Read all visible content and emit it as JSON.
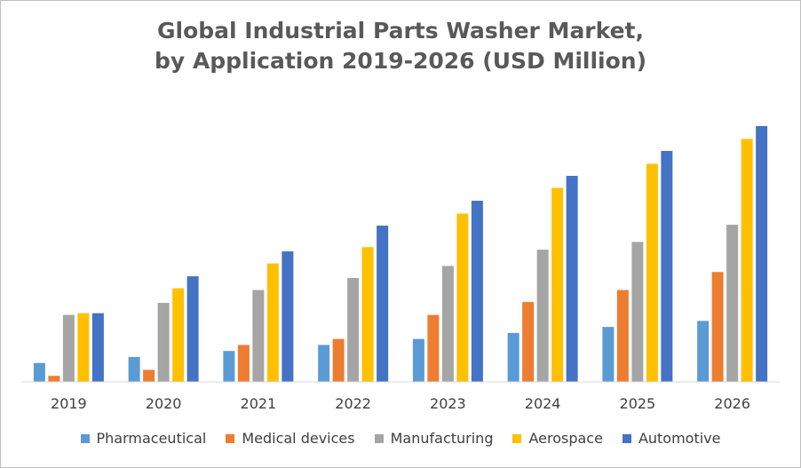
{
  "chart_data": {
    "type": "bar",
    "title": [
      "Global Industrial Parts Washer Market,",
      "by Application 2019-2026 (USD Million)"
    ],
    "xlabel": "",
    "ylabel": "",
    "categories": [
      "2019",
      "2020",
      "2021",
      "2022",
      "2023",
      "2024",
      "2025",
      "2026"
    ],
    "ylim": [
      0,
      300
    ],
    "grid": false,
    "legend_position": "bottom",
    "series": [
      {
        "name": "Pharmaceutical",
        "color": "#5b9bd5",
        "values": [
          22,
          29,
          36,
          43,
          50,
          57,
          64,
          71
        ]
      },
      {
        "name": "Medical devices",
        "color": "#ed7d31",
        "values": [
          7,
          14,
          43,
          50,
          78,
          93,
          107,
          128
        ]
      },
      {
        "name": "Manufacturing",
        "color": "#a5a5a5",
        "values": [
          78,
          92,
          107,
          121,
          135,
          154,
          163,
          183
        ]
      },
      {
        "name": "Aerospace",
        "color": "#ffc000",
        "values": [
          80,
          109,
          138,
          157,
          196,
          226,
          254,
          283
        ]
      },
      {
        "name": "Automotive",
        "color": "#4472c4",
        "values": [
          80,
          123,
          152,
          182,
          211,
          240,
          269,
          298
        ]
      }
    ]
  }
}
